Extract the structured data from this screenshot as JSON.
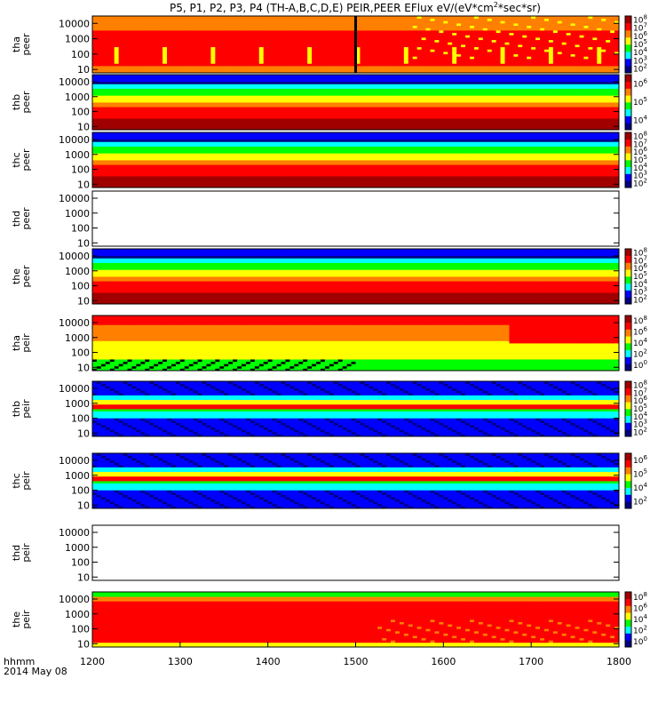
{
  "chart_data": {
    "type": "heatmap",
    "title": "P5, P1, P2, P3, P4 (TH-A,B,C,D,E) PEIR,PEER EFlux eV/(eV*cm²*sec*sr)",
    "title_parts": {
      "prefix": "P5, P1, P2, P3, P4 (TH-A,B,C,D,E) PEIR,PEER EFlux eV/(eV*cm",
      "sup": "2",
      "suffix": "*sec*sr)"
    },
    "x_axis": {
      "label_line1": "hhmm",
      "label_line2": "2014 May 08",
      "ticks": [
        "1200",
        "1300",
        "1400",
        "1500",
        "1600",
        "1700",
        "1800"
      ],
      "tick_values": [
        1200,
        1300,
        1400,
        1500,
        1600,
        1700,
        1800
      ],
      "range": [
        1200,
        1800
      ]
    },
    "y_axis": {
      "scale": "log",
      "unit": "eV"
    },
    "panels": [
      {
        "ylabel": [
          "tha",
          "peer"
        ],
        "yticks": [
          "10000",
          "1000",
          "100",
          "10"
        ],
        "ytick_values": [
          10000,
          1000,
          100,
          10
        ],
        "yrange": [
          6,
          30000
        ],
        "has_data": true,
        "style": "peer_hot",
        "cbar_exp": [
          2,
          3,
          4,
          5,
          6,
          7,
          8
        ],
        "cbar_labels": [
          "10",
          "10",
          "10",
          "10",
          "10",
          "10",
          "10"
        ]
      },
      {
        "ylabel": [
          "thb",
          "peer"
        ],
        "yticks": [
          "10000",
          "1000",
          "100",
          "10"
        ],
        "ytick_values": [
          10000,
          1000,
          100,
          10
        ],
        "yrange": [
          6,
          30000
        ],
        "has_data": true,
        "style": "peer_cool",
        "cbar_exp": [
          4,
          5,
          6
        ],
        "cbar_labels": [
          "10",
          "10",
          "10"
        ]
      },
      {
        "ylabel": [
          "thc",
          "peer"
        ],
        "yticks": [
          "10000",
          "1000",
          "100",
          "10"
        ],
        "ytick_values": [
          10000,
          1000,
          100,
          10
        ],
        "yrange": [
          6,
          30000
        ],
        "has_data": true,
        "style": "peer_cool",
        "cbar_exp": [
          2,
          3,
          4,
          5,
          6,
          7,
          8
        ],
        "cbar_labels": [
          "10",
          "10",
          "10",
          "10",
          "10",
          "10",
          "10"
        ]
      },
      {
        "ylabel": [
          "thd",
          "peer"
        ],
        "yticks": [
          "10000",
          "1000",
          "100",
          "10"
        ],
        "ytick_values": [
          10000,
          1000,
          100,
          10
        ],
        "yrange": [
          6,
          30000
        ],
        "has_data": false
      },
      {
        "ylabel": [
          "the",
          "peer"
        ],
        "yticks": [
          "10000",
          "1000",
          "100",
          "10"
        ],
        "ytick_values": [
          10000,
          1000,
          100,
          10
        ],
        "yrange": [
          6,
          30000
        ],
        "has_data": true,
        "style": "peer_cool",
        "cbar_exp": [
          2,
          3,
          4,
          5,
          6,
          7,
          8
        ],
        "cbar_labels": [
          "10",
          "10",
          "10",
          "10",
          "10",
          "10",
          "10"
        ]
      },
      {
        "ylabel": [
          "tha",
          "peir"
        ],
        "yticks": [
          "10000",
          "1000",
          "100",
          "10"
        ],
        "ytick_values": [
          10000,
          1000,
          100,
          10
        ],
        "yrange": [
          6,
          30000
        ],
        "has_data": true,
        "style": "peir_tha",
        "cbar_exp": [
          0,
          2,
          4,
          6,
          8
        ],
        "cbar_labels": [
          "10",
          "10",
          "10",
          "10",
          "10"
        ]
      },
      {
        "ylabel": [
          "thb",
          "peir"
        ],
        "yticks": [
          "10000",
          "1000",
          "100",
          "10"
        ],
        "ytick_values": [
          10000,
          1000,
          100,
          10
        ],
        "yrange": [
          6,
          30000
        ],
        "has_data": true,
        "style": "peir_band",
        "cbar_exp": [
          2,
          3,
          4,
          5,
          6,
          7,
          8
        ],
        "cbar_labels": [
          "10",
          "10",
          "10",
          "10",
          "10",
          "10",
          "10"
        ]
      },
      {
        "ylabel": [
          "thc",
          "peir"
        ],
        "yticks": [
          "10000",
          "1000",
          "100",
          "10"
        ],
        "ytick_values": [
          10000,
          1000,
          100,
          10
        ],
        "yrange": [
          6,
          30000
        ],
        "has_data": true,
        "style": "peir_band",
        "cbar_exp": [
          2,
          4,
          5,
          6
        ],
        "cbar_labels": [
          "10",
          "10",
          "10",
          "10"
        ]
      },
      {
        "ylabel": [
          "thd",
          "peir"
        ],
        "yticks": [
          "10000",
          "1000",
          "100",
          "10"
        ],
        "ytick_values": [
          10000,
          1000,
          100,
          10
        ],
        "yrange": [
          6,
          30000
        ],
        "has_data": false
      },
      {
        "ylabel": [
          "the",
          "peir"
        ],
        "yticks": [
          "10000",
          "1000",
          "100",
          "10"
        ],
        "ytick_values": [
          10000,
          1000,
          100,
          10
        ],
        "yrange": [
          6,
          30000
        ],
        "has_data": true,
        "style": "peir_the",
        "cbar_exp": [
          0,
          2,
          4,
          6,
          8
        ],
        "cbar_labels": [
          "10",
          "10",
          "10",
          "10",
          "10"
        ]
      }
    ],
    "colors": {
      "dark_red": "#a00000",
      "red": "#ff0000",
      "orange": "#ff8000",
      "yellow": "#ffff00",
      "green": "#00ff00",
      "cyan": "#00ffff",
      "blue": "#0000ff",
      "navy": "#000080",
      "black": "#000000"
    }
  }
}
